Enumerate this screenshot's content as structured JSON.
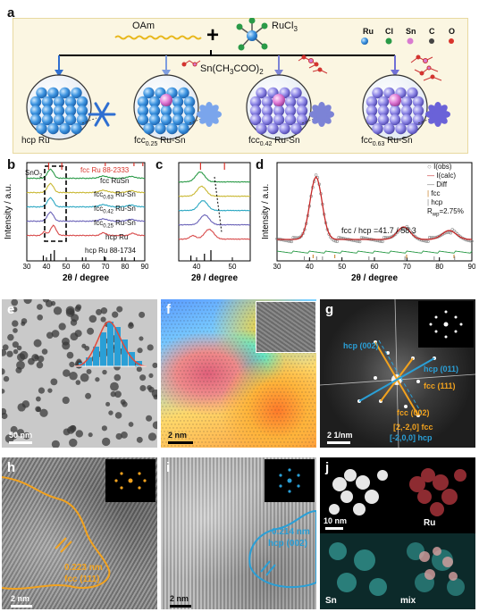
{
  "panel_labels": {
    "a": "a",
    "b": "b",
    "c": "c",
    "d": "d",
    "e": "e",
    "f": "f",
    "g": "g",
    "h": "h",
    "i": "i",
    "j": "j"
  },
  "panel_a": {
    "oam": "OAm",
    "rucl3": "RuCl",
    "rucl3_sub": "3",
    "plus": "+",
    "sn_precursor": "Sn(CH",
    "sn_sub1": "3",
    "sn_mid": "COO)",
    "sn_sub2": "2",
    "legend": [
      {
        "name": "Ru",
        "color": "#4f9fe0"
      },
      {
        "name": "Cl",
        "color": "#2a9a47"
      },
      {
        "name": "Sn",
        "color": "#d97bd0"
      },
      {
        "name": "C",
        "color": "#444444"
      },
      {
        "name": "O",
        "color": "#d9342b"
      }
    ],
    "structures": [
      {
        "main": "hcp Ru",
        "prefix": "",
        "sub": "",
        "suffix": ""
      },
      {
        "main": "",
        "prefix": "fcc",
        "sub": "0.25",
        "suffix": " Ru-Sn"
      },
      {
        "main": "",
        "prefix": "fcc",
        "sub": "0.42",
        "suffix": " Ru-Sn"
      },
      {
        "main": "",
        "prefix": "fcc",
        "sub": "0.63",
        "suffix": " Ru-Sn"
      }
    ]
  },
  "panel_b": {
    "ylabel": "Intensity / a.u.",
    "xlabel": "2θ / degree",
    "xticks": [
      "30",
      "40",
      "50",
      "60",
      "70",
      "80",
      "90"
    ],
    "ref_top": "fcc Ru 88-2333",
    "ref_bottom": "hcp Ru 88-1734",
    "sno2": "SnO",
    "sno2_sub": "2",
    "curves": [
      {
        "name": "fcc RuSn",
        "sub": "",
        "label": "fcc RuSn",
        "color": "#2a9a47"
      },
      {
        "name": "fcc",
        "sub": "0.63",
        "suffix": " Ru-Sn",
        "color": "#c9b832"
      },
      {
        "name": "fcc",
        "sub": "0.42",
        "suffix": " Ru-Sn",
        "color": "#2aa7c2"
      },
      {
        "name": "fcc",
        "sub": "0.25",
        "suffix": " Ru-Sn",
        "color": "#6a62b8"
      },
      {
        "name": "hcp Ru",
        "sub": "",
        "suffix": "",
        "color": "#d84a4a"
      }
    ]
  },
  "panel_c": {
    "xlabel": "2θ / degree",
    "xticks": [
      "40",
      "50"
    ]
  },
  "panel_d": {
    "ylabel": "Intensity / a.u.",
    "xlabel": "2θ / degree",
    "xticks": [
      "30",
      "40",
      "50",
      "60",
      "70",
      "80",
      "90"
    ],
    "legend": [
      "I(obs)",
      "I(calc)",
      "Diff",
      "fcc",
      "hcp"
    ],
    "rwp": "R",
    "rwp_sub": "wp",
    "rwp_val": "=2.75%",
    "ratio": "fcc / hcp =41.7 / 58.3"
  },
  "panel_e": {
    "scale": "50 nm"
  },
  "panel_f": {
    "scale": "2 nm"
  },
  "panel_g": {
    "scale": "2 1/nm",
    "hcp002": "hcp (002)",
    "hcp011": "hcp (011)",
    "fcc111": "fcc (111)",
    "fcc002": "fcc (002)",
    "zone1": "[2,-2,0] fcc",
    "zone2": "[-2,0,0] hcp"
  },
  "panel_h": {
    "scale": "2 nm",
    "d": "0.223 nm",
    "plane": "fcc (111)"
  },
  "panel_i": {
    "scale": "2 nm",
    "d": "0.214 nm",
    "plane": "hcp (002)"
  },
  "panel_j": {
    "scale": "10 nm",
    "ru": "Ru",
    "sn": "Sn",
    "mix": "mix"
  },
  "colors": {
    "orange": "#f2a21e",
    "blue": "#2a9fd6",
    "panel_a_bg": "#fbf6e2"
  }
}
